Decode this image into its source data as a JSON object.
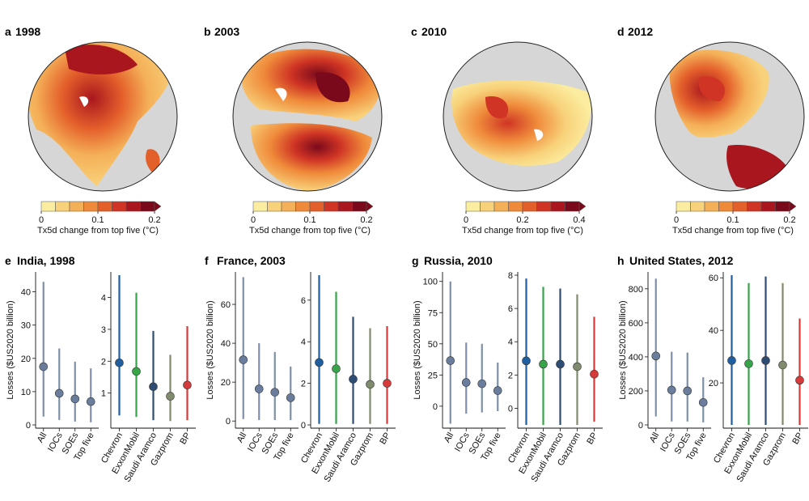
{
  "figure": {
    "maps": [
      {
        "letter": "a",
        "year": "1998",
        "cb_ticks": [
          "0",
          "0.1",
          "0.2"
        ],
        "cb_max": 0.2,
        "cb_label": "Tx5d change from top five (°C)"
      },
      {
        "letter": "b",
        "year": "2003",
        "cb_ticks": [
          "0",
          "0.1",
          "0.2"
        ],
        "cb_max": 0.2,
        "cb_label": "Tx5d change from top five (°C)"
      },
      {
        "letter": "c",
        "year": "2010",
        "cb_ticks": [
          "0",
          "0.2",
          "0.4"
        ],
        "cb_max": 0.4,
        "cb_label": "Tx5d change from top five (°C)"
      },
      {
        "letter": "d",
        "year": "2012",
        "cb_ticks": [
          "0",
          "0.1",
          "0.2"
        ],
        "cb_max": 0.2,
        "cb_label": "Tx5d change from top five (°C)"
      }
    ],
    "colorbar_colors": [
      "#fbeda0",
      "#f8d27b",
      "#f4b058",
      "#ef8a3a",
      "#e4602b",
      "#cf3424",
      "#a9161e",
      "#7a0a1b"
    ]
  },
  "chart_data": [
    {
      "type": "scatter",
      "panel": "e",
      "title": "India, 1998",
      "ylabel": "Losses ($US2020 billion)",
      "left": {
        "categories": [
          "All",
          "IOCs",
          "SOEs",
          "Top five"
        ],
        "ylim": [
          0,
          45
        ],
        "yticks": [
          0,
          10,
          20,
          30,
          40
        ],
        "central": [
          17.5,
          9.5,
          7.8,
          7.0
        ],
        "lower": [
          2.5,
          1.5,
          1.0,
          0.8
        ],
        "upper": [
          43,
          23,
          19,
          17
        ]
      },
      "right": {
        "categories": [
          "Chevron",
          "ExxonMobil",
          "Saudi Aramco",
          "Gazprom",
          "BP"
        ],
        "ylim": [
          0,
          4.7
        ],
        "yticks": [
          1,
          2,
          3,
          4
        ],
        "central": [
          1.95,
          1.68,
          1.2,
          0.9,
          1.25
        ],
        "lower": [
          0.3,
          0.25,
          0.15,
          0.12,
          0.15
        ],
        "upper": [
          4.7,
          4.15,
          2.95,
          2.2,
          3.1
        ]
      }
    },
    {
      "type": "scatter",
      "panel": "f",
      "title": "France, 2003",
      "ylabel": "Losses ($US2020 billion)",
      "left": {
        "categories": [
          "All",
          "IOCs",
          "SOEs",
          "Top five"
        ],
        "ylim": [
          -2,
          75
        ],
        "yticks": [
          0,
          20,
          40,
          60
        ],
        "central": [
          31.5,
          16.5,
          14.8,
          12.0
        ],
        "lower": [
          1.0,
          0.5,
          0.5,
          0.5
        ],
        "upper": [
          74,
          40,
          35.5,
          28
        ]
      },
      "right": {
        "categories": [
          "Chevron",
          "ExxonMobil",
          "Saudi Aramco",
          "Gazprom",
          "BP"
        ],
        "ylim": [
          0,
          7.2
        ],
        "yticks": [
          0,
          2,
          4,
          6
        ],
        "central": [
          3.0,
          2.7,
          2.2,
          1.95,
          2.0
        ],
        "lower": [
          0.05,
          0.05,
          0.05,
          0.05,
          0.05
        ],
        "upper": [
          7.2,
          6.4,
          5.2,
          4.65,
          4.75
        ]
      }
    },
    {
      "type": "scatter",
      "panel": "g",
      "title": "Russia, 2010",
      "ylabel": "Losses ($US2020 billion)",
      "left": {
        "categories": [
          "All",
          "IOCs",
          "SOEs",
          "Top five"
        ],
        "ylim": [
          -15,
          105
        ],
        "yticks": [
          0,
          25,
          50,
          75,
          100
        ],
        "central": [
          36.5,
          19,
          18,
          12.5
        ],
        "lower": [
          -14,
          -6,
          -5,
          -4
        ],
        "upper": [
          100,
          51,
          50,
          35
        ]
      },
      "right": {
        "categories": [
          "Chevron",
          "ExxonMobil",
          "Saudi Aramco",
          "Gazprom",
          "BP"
        ],
        "ylim": [
          -1,
          8
        ],
        "yticks": [
          0,
          2,
          4,
          6,
          8
        ],
        "central": [
          2.85,
          2.65,
          2.65,
          2.5,
          2.05
        ],
        "lower": [
          -1,
          -1,
          -1,
          -1,
          -0.8
        ],
        "upper": [
          7.8,
          7.3,
          7.2,
          6.85,
          5.5
        ]
      }
    },
    {
      "type": "scatter",
      "panel": "h",
      "title": "United States, 2012",
      "ylabel": "Losses ($US2020 billion)",
      "left": {
        "categories": [
          "All",
          "IOCs",
          "SOEs",
          "Top five"
        ],
        "ylim": [
          0,
          880
        ],
        "yticks": [
          0,
          200,
          400,
          600,
          800
        ],
        "central": [
          405,
          205,
          200,
          132
        ],
        "lower": [
          50,
          20,
          20,
          15
        ],
        "upper": [
          860,
          430,
          425,
          280
        ]
      },
      "right": {
        "categories": [
          "Chevron",
          "ExxonMobil",
          "Saudi Aramco",
          "Gazprom",
          "BP"
        ],
        "ylim": [
          4,
          61
        ],
        "yticks": [
          20,
          40,
          60
        ],
        "central": [
          28.5,
          27.3,
          28.5,
          26.8,
          21
        ],
        "lower": [
          4,
          4,
          4,
          4,
          4
        ],
        "upper": [
          61,
          58,
          60.5,
          58,
          44.5
        ]
      }
    }
  ],
  "series_colors": {
    "group": "#7f8fa9",
    "group_marker": "#6a7d9c",
    "companies": [
      "#1f5fa0",
      "#37a44a",
      "#2f4d72",
      "#808a6c",
      "#d63a3a"
    ]
  }
}
